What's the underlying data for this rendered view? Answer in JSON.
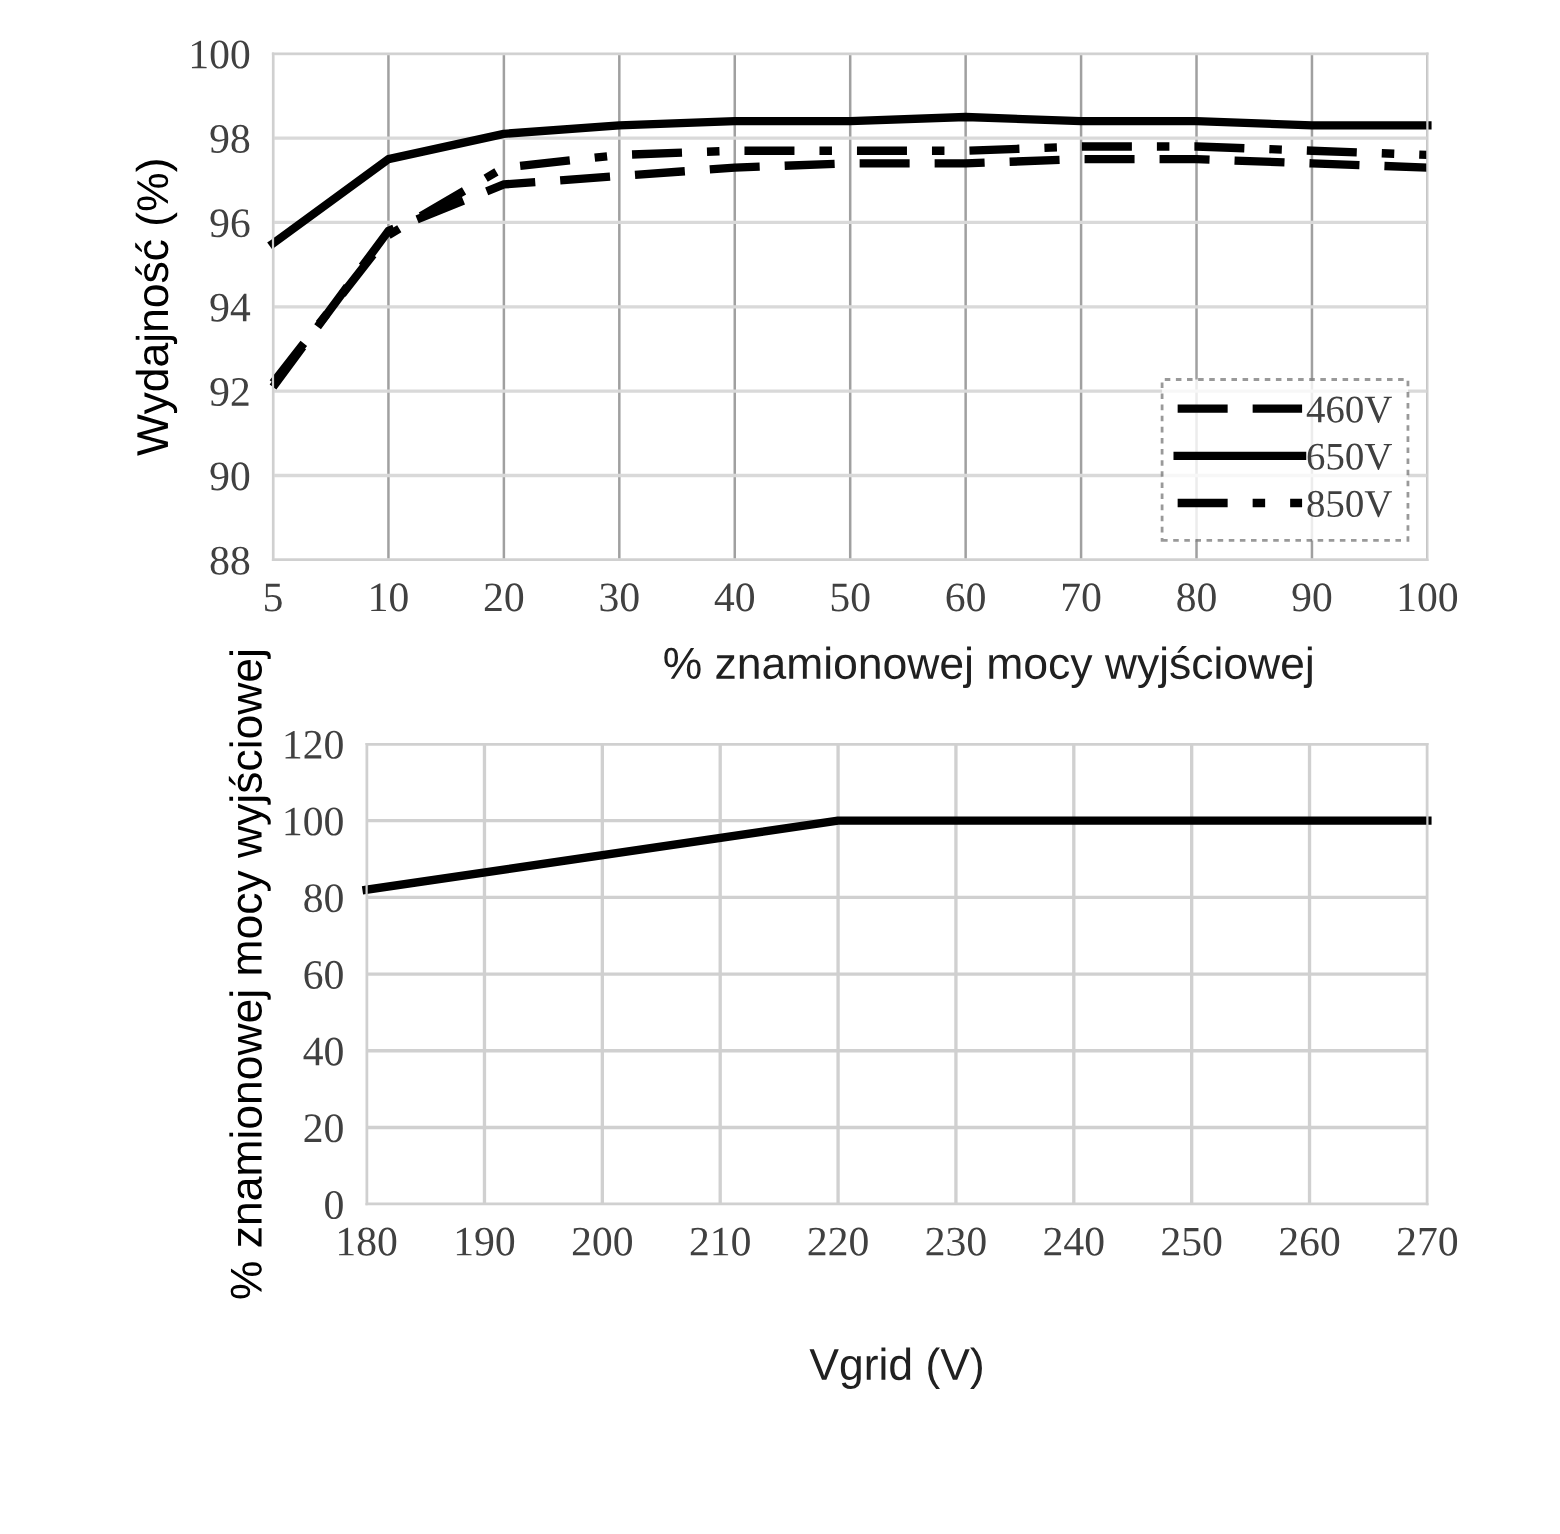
{
  "chart_data": [
    {
      "type": "line",
      "ylabel": "Wydajność (%)",
      "xlabel": "% znamionowej mocy wyjściowej",
      "categories": [
        "5",
        "10",
        "20",
        "30",
        "40",
        "50",
        "60",
        "70",
        "80",
        "90",
        "100"
      ],
      "series": [
        {
          "name": "460V",
          "color": "#000000",
          "line_style": "dashed",
          "values": [
            92.1,
            95.8,
            96.9,
            97.1,
            97.3,
            97.4,
            97.4,
            97.5,
            97.5,
            97.4,
            97.3
          ]
        },
        {
          "name": "650V",
          "color": "#000000",
          "line_style": "solid",
          "values": [
            95.5,
            97.5,
            98.1,
            98.3,
            98.4,
            98.4,
            98.5,
            98.4,
            98.4,
            98.3,
            98.3
          ]
        },
        {
          "name": "850V",
          "color": "#000000",
          "line_style": "dashdot",
          "values": [
            92.2,
            95.7,
            97.3,
            97.6,
            97.7,
            97.7,
            97.7,
            97.8,
            97.8,
            97.7,
            97.6
          ]
        }
      ],
      "ylim": [
        88,
        100
      ],
      "yticks": [
        88,
        90,
        92,
        94,
        96,
        98,
        100
      ],
      "grid": true,
      "legend": "bottom right",
      "marker": "none"
    },
    {
      "type": "line",
      "ylabel": "% znamionowej mocy wyjściowej",
      "xlabel": "Vgrid (V)",
      "x": [
        180,
        220,
        270
      ],
      "series": [
        {
          "color": "#000000",
          "line_style": "solid",
          "values": [
            82,
            100,
            100
          ]
        }
      ],
      "xlim": [
        180,
        270
      ],
      "xticks": [
        180,
        190,
        200,
        210,
        220,
        230,
        240,
        250,
        260,
        270
      ],
      "ylim": [
        0,
        120
      ],
      "yticks": [
        0,
        20,
        40,
        60,
        80,
        100,
        120
      ],
      "grid": true,
      "marker": "none"
    }
  ]
}
